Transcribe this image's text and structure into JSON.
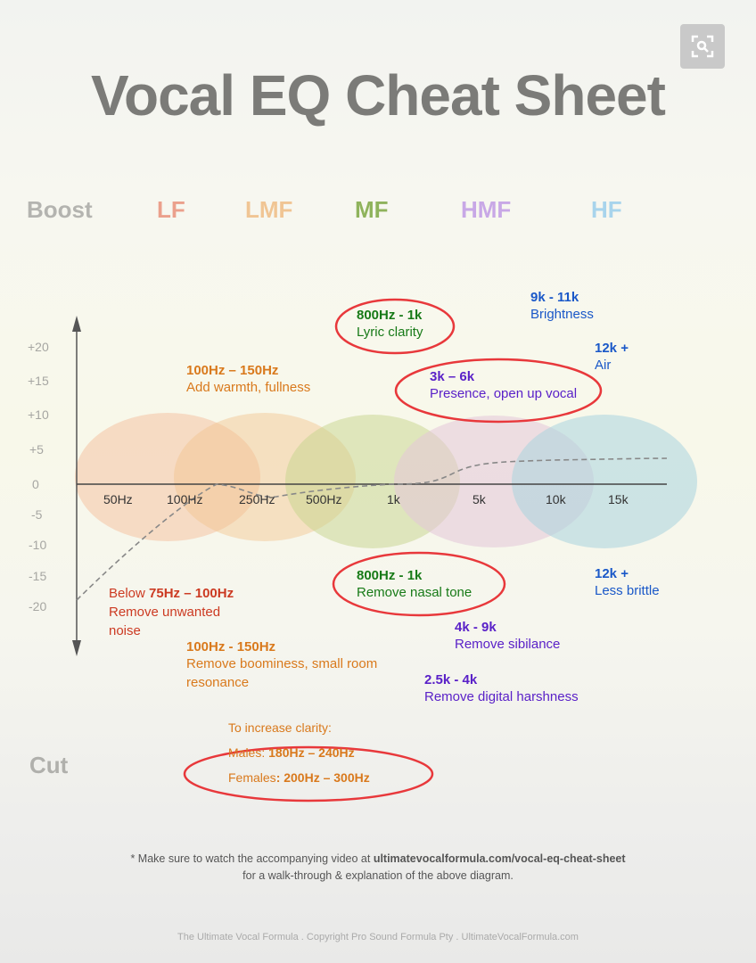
{
  "viewer": {
    "expand_button_icon": "expand-search-icon"
  },
  "title": "Vocal EQ Cheat Sheet",
  "bands": {
    "boost": "Boost",
    "lf": "LF",
    "lmf": "LMF",
    "mf": "MF",
    "hmf": "HMF",
    "hf": "HF",
    "cut": "Cut"
  },
  "colors": {
    "lf": "#e8856c",
    "lmf": "#e8b37a",
    "mf": "#7aa24a",
    "hmf": "#b48fd6",
    "hf": "#8cc4e4",
    "highlight": "#e8383b"
  },
  "y_ticks": [
    "+20",
    "+15",
    "+10",
    "+5",
    "0",
    "-5",
    "-10",
    "-15",
    "-20"
  ],
  "x_ticks": [
    "50Hz",
    "100Hz",
    "250Hz",
    "500Hz",
    "1k",
    "5k",
    "10k",
    "15k"
  ],
  "boost_notes": [
    {
      "range": "100Hz – 150Hz",
      "desc": "Add warmth, fullness"
    },
    {
      "range": "800Hz - 1k",
      "desc": "Lyric clarity"
    },
    {
      "range": "3k – 6k",
      "desc": "Presence, open up vocal"
    },
    {
      "range": "9k - 11k",
      "desc": "Brightness"
    },
    {
      "range": "12k +",
      "desc": "Air"
    }
  ],
  "cut_notes": [
    {
      "prefix": "Below ",
      "range": "75Hz – 100Hz",
      "desc1": "Remove unwanted",
      "desc2": "noise"
    },
    {
      "range": "100Hz - 150Hz",
      "desc1": "Remove boominess, small room",
      "desc2": "resonance"
    },
    {
      "range": "800Hz - 1k",
      "desc": "Remove nasal tone"
    },
    {
      "range": "4k - 9k",
      "desc": "Remove sibilance"
    },
    {
      "range": "2.5k - 4k",
      "desc": "Remove digital harshness"
    },
    {
      "range": "12k +",
      "desc": "Less brittle"
    }
  ],
  "clarity": {
    "heading": "To increase clarity:",
    "males_label": "Males: ",
    "males_range": "180Hz – 240Hz",
    "females_label": "Females",
    "females_range": ": 200Hz – 300Hz"
  },
  "footer": {
    "line1_prefix": "* Make sure to watch the accompanying video at ",
    "line1_link": "ultimatevocalformula.com/vocal-eq-cheat-sheet",
    "line2": "for a walk-through & explanation of the above diagram.",
    "copyright": "The Ultimate Vocal Formula .  Copyright Pro Sound Formula Pty . UltimateVocalFormula.com"
  }
}
